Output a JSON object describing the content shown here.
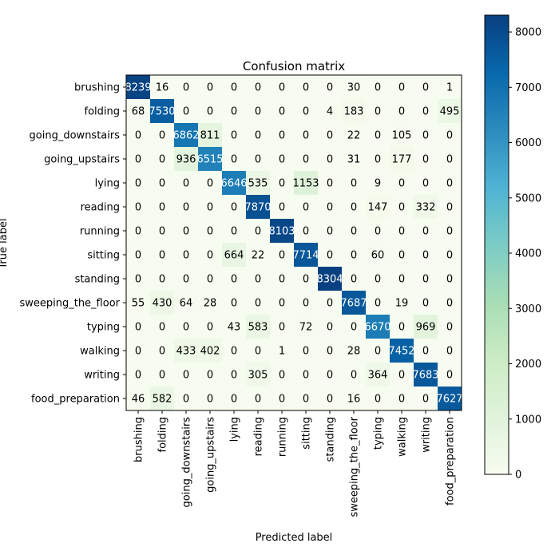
{
  "chart_data": {
    "type": "heatmap",
    "title": "Confusion matrix",
    "xlabel": "Predicted label",
    "ylabel": "True label",
    "labels": [
      "brushing",
      "folding",
      "going_downstairs",
      "going_upstairs",
      "lying",
      "reading",
      "running",
      "sitting",
      "standing",
      "sweeping_the_floor",
      "typing",
      "walking",
      "writing",
      "food_preparation"
    ],
    "matrix": [
      [
        8239,
        16,
        0,
        0,
        0,
        0,
        0,
        0,
        0,
        30,
        0,
        0,
        0,
        1
      ],
      [
        68,
        7530,
        0,
        0,
        0,
        0,
        0,
        0,
        4,
        183,
        0,
        0,
        0,
        495
      ],
      [
        0,
        0,
        6862,
        811,
        0,
        0,
        0,
        0,
        0,
        22,
        0,
        105,
        0,
        0
      ],
      [
        0,
        0,
        936,
        6515,
        0,
        0,
        0,
        0,
        0,
        31,
        0,
        177,
        0,
        0
      ],
      [
        0,
        0,
        0,
        0,
        6646,
        535,
        0,
        1153,
        0,
        0,
        9,
        0,
        0,
        0
      ],
      [
        0,
        0,
        0,
        0,
        0,
        7870,
        0,
        0,
        0,
        0,
        147,
        0,
        332,
        0
      ],
      [
        0,
        0,
        0,
        0,
        0,
        0,
        8103,
        0,
        0,
        0,
        0,
        0,
        0,
        0
      ],
      [
        0,
        0,
        0,
        0,
        664,
        22,
        0,
        7714,
        0,
        0,
        60,
        0,
        0,
        0
      ],
      [
        0,
        0,
        0,
        0,
        0,
        0,
        0,
        0,
        8304,
        0,
        0,
        0,
        0,
        0
      ],
      [
        55,
        430,
        64,
        28,
        0,
        0,
        0,
        0,
        0,
        7687,
        0,
        19,
        0,
        0
      ],
      [
        0,
        0,
        0,
        0,
        43,
        583,
        0,
        72,
        0,
        0,
        6670,
        0,
        969,
        0
      ],
      [
        0,
        0,
        433,
        402,
        0,
        0,
        1,
        0,
        0,
        28,
        0,
        7452,
        0,
        0
      ],
      [
        0,
        0,
        0,
        0,
        0,
        305,
        0,
        0,
        0,
        0,
        364,
        0,
        7683,
        0
      ],
      [
        46,
        582,
        0,
        0,
        0,
        0,
        0,
        0,
        0,
        16,
        0,
        0,
        0,
        7627
      ]
    ],
    "colormap": "GnBu",
    "colorbar": {
      "range": [
        0,
        8304
      ],
      "ticks": [
        0,
        1000,
        2000,
        3000,
        4000,
        5000,
        6000,
        7000,
        8000
      ]
    },
    "grid": false
  }
}
